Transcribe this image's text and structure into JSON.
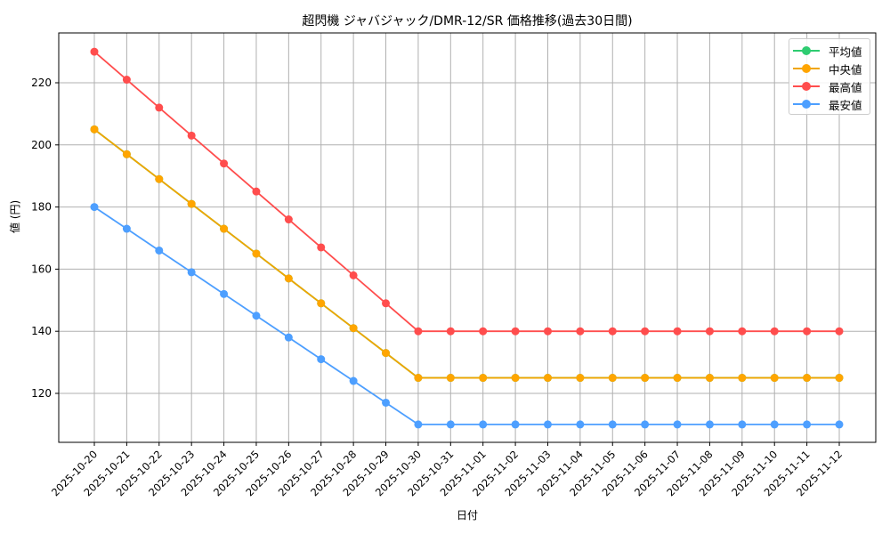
{
  "chart_data": {
    "type": "line",
    "title": "超閃機 ジャバジャック/DMR-12/SR 価格推移(過去30日間)",
    "xlabel": "日付",
    "ylabel": "値 (円)",
    "ylim": [
      104,
      235
    ],
    "yticks": [
      120,
      140,
      160,
      180,
      200,
      220
    ],
    "grid": true,
    "legend_position": "upper right",
    "categories": [
      "2025-10-20",
      "2025-10-21",
      "2025-10-22",
      "2025-10-23",
      "2025-10-24",
      "2025-10-25",
      "2025-10-26",
      "2025-10-27",
      "2025-10-28",
      "2025-10-29",
      "2025-10-30",
      "2025-10-31",
      "2025-11-01",
      "2025-11-02",
      "2025-11-03",
      "2025-11-04",
      "2025-11-05",
      "2025-11-06",
      "2025-11-07",
      "2025-11-08",
      "2025-11-09",
      "2025-11-10",
      "2025-11-11",
      "2025-11-12"
    ],
    "series": [
      {
        "name": "平均値",
        "color": "#2ecc71",
        "values": [
          205,
          197,
          189,
          181,
          173,
          165,
          157,
          149,
          141,
          133,
          125,
          125,
          125,
          125,
          125,
          125,
          125,
          125,
          125,
          125,
          125,
          125,
          125,
          125
        ]
      },
      {
        "name": "中央値",
        "color": "#f0a500",
        "values": [
          205,
          197,
          189,
          181,
          173,
          165,
          157,
          149,
          141,
          133,
          125,
          125,
          125,
          125,
          125,
          125,
          125,
          125,
          125,
          125,
          125,
          125,
          125,
          125
        ]
      },
      {
        "name": "最高値",
        "color": "#ff4d4d",
        "values": [
          230,
          221,
          212,
          203,
          194,
          185,
          176,
          167,
          158,
          149,
          140,
          140,
          140,
          140,
          140,
          140,
          140,
          140,
          140,
          140,
          140,
          140,
          140,
          140
        ]
      },
      {
        "name": "最安値",
        "color": "#4d9fff",
        "values": [
          180,
          173,
          166,
          159,
          152,
          145,
          138,
          131,
          124,
          117,
          110,
          110,
          110,
          110,
          110,
          110,
          110,
          110,
          110,
          110,
          110,
          110,
          110,
          110
        ]
      }
    ]
  }
}
